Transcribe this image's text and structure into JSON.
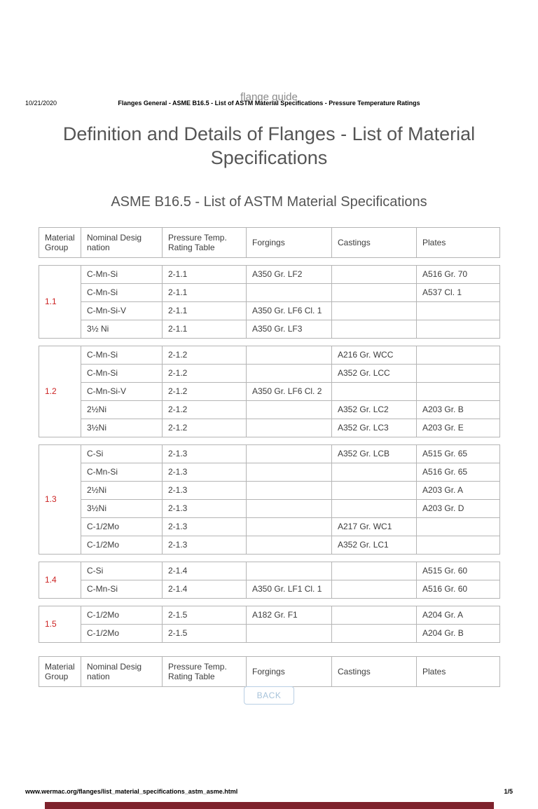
{
  "print_header": {
    "date": "10/21/2020",
    "title": "Flanges General - ASME B16.5 - List of ASTM Material Specifications - Pressure Temperature Ratings"
  },
  "page": {
    "site_label": "flange guide",
    "main_title": "Definition and Details of Flanges - List of Material Specifications",
    "section_title": "ASME B16.5 - List of ASTM Material Specifications"
  },
  "table": {
    "headers": [
      "Material Group",
      "Nominal Desig nation",
      "Pressure Temp. Rating Table",
      "Forgings",
      "Castings",
      "Plates"
    ],
    "groups": [
      {
        "group": "1.1",
        "rows": [
          [
            "C-Mn-Si",
            "2-1.1",
            "A350 Gr. LF2",
            "",
            "A516 Gr. 70"
          ],
          [
            "C-Mn-Si",
            "2-1.1",
            "",
            "",
            "A537 Cl. 1"
          ],
          [
            "C-Mn-Si-V",
            "2-1.1",
            "A350 Gr. LF6 Cl. 1",
            "",
            ""
          ],
          [
            "3½ Ni",
            "2-1.1",
            "A350 Gr. LF3",
            "",
            ""
          ]
        ]
      },
      {
        "group": "1.2",
        "rows": [
          [
            "C-Mn-Si",
            "2-1.2",
            "",
            "A216 Gr. WCC",
            ""
          ],
          [
            "C-Mn-Si",
            "2-1.2",
            "",
            "A352 Gr. LCC",
            ""
          ],
          [
            "C-Mn-Si-V",
            "2-1.2",
            "A350 Gr. LF6 Cl. 2",
            "",
            ""
          ],
          [
            "2½Ni",
            "2-1.2",
            "",
            "A352 Gr. LC2",
            "A203 Gr. B"
          ],
          [
            "3½Ni",
            "2-1.2",
            "",
            "A352 Gr. LC3",
            "A203 Gr. E"
          ]
        ]
      },
      {
        "group": "1.3",
        "rows": [
          [
            "C-Si",
            "2-1.3",
            "",
            "A352 Gr. LCB",
            "A515 Gr. 65"
          ],
          [
            "C-Mn-Si",
            "2-1.3",
            "",
            "",
            "A516 Gr. 65"
          ],
          [
            "2½Ni",
            "2-1.3",
            "",
            "",
            "A203 Gr. A"
          ],
          [
            "3½Ni",
            "2-1.3",
            "",
            "",
            "A203 Gr. D"
          ],
          [
            "C-1/2Mo",
            "2-1.3",
            "",
            "A217 Gr. WC1",
            ""
          ],
          [
            "C-1/2Mo",
            "2-1.3",
            "",
            "A352 Gr. LC1",
            ""
          ]
        ]
      },
      {
        "group": "1.4",
        "rows": [
          [
            "C-Si",
            "2-1.4",
            "",
            "",
            "A515 Gr. 60"
          ],
          [
            "C-Mn-Si",
            "2-1.4",
            "A350 Gr. LF1 Cl. 1",
            "",
            "A516 Gr. 60"
          ]
        ]
      },
      {
        "group": "1.5",
        "rows": [
          [
            "C-1/2Mo",
            "2-1.5",
            "A182 Gr. F1",
            "",
            "A204 Gr. A"
          ],
          [
            "C-1/2Mo",
            "2-1.5",
            "",
            "",
            "A204 Gr. B"
          ]
        ]
      }
    ]
  },
  "back_button": "BACK",
  "print_footer": {
    "url": "www.wermac.org/flanges/list_material_specifications_astm_asme.html",
    "page": "1/5"
  },
  "colors": {
    "group_number": "#cc2222",
    "next_page_strip": "#7e222c",
    "table_border": "#b5b5b5",
    "back_button_text": "#a7c3da"
  }
}
